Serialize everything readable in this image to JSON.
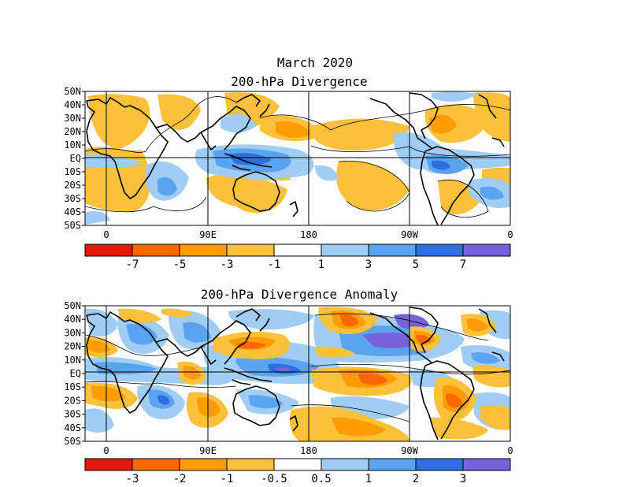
{
  "title": "March 2020",
  "colors": {
    "neg4": "#e01c0c",
    "neg3": "#ff6600",
    "neg2": "#ff9d00",
    "neg1": "#ffc13c",
    "zero": "#ffffff",
    "pos1": "#9fcdf5",
    "pos2": "#5aa3ef",
    "pos3": "#2e6fe0",
    "pos4": "#7663d9",
    "coast": "#000000"
  },
  "panels": [
    {
      "title": "200-hPa Divergence",
      "lat_labels": [
        "50N",
        "40N",
        "30N",
        "20N",
        "10N",
        "EQ",
        "10S",
        "20S",
        "30S",
        "40S",
        "50S"
      ],
      "lon_labels": [
        "0",
        "90E",
        "180",
        "90W",
        "0"
      ],
      "colorbar_labels": [
        "-7",
        "-5",
        "-3",
        "-1",
        "1",
        "3",
        "5",
        "7"
      ]
    },
    {
      "title": "200-hPa Divergence Anomaly",
      "lat_labels": [
        "50N",
        "40N",
        "30N",
        "20N",
        "10N",
        "EQ",
        "10S",
        "20S",
        "30S",
        "40S",
        "50S"
      ],
      "lon_labels": [
        "0",
        "90E",
        "180",
        "90W",
        "0"
      ],
      "colorbar_labels": [
        "-3",
        "-2",
        "-1",
        "-0.5",
        "0.5",
        "1",
        "2",
        "3"
      ]
    }
  ]
}
